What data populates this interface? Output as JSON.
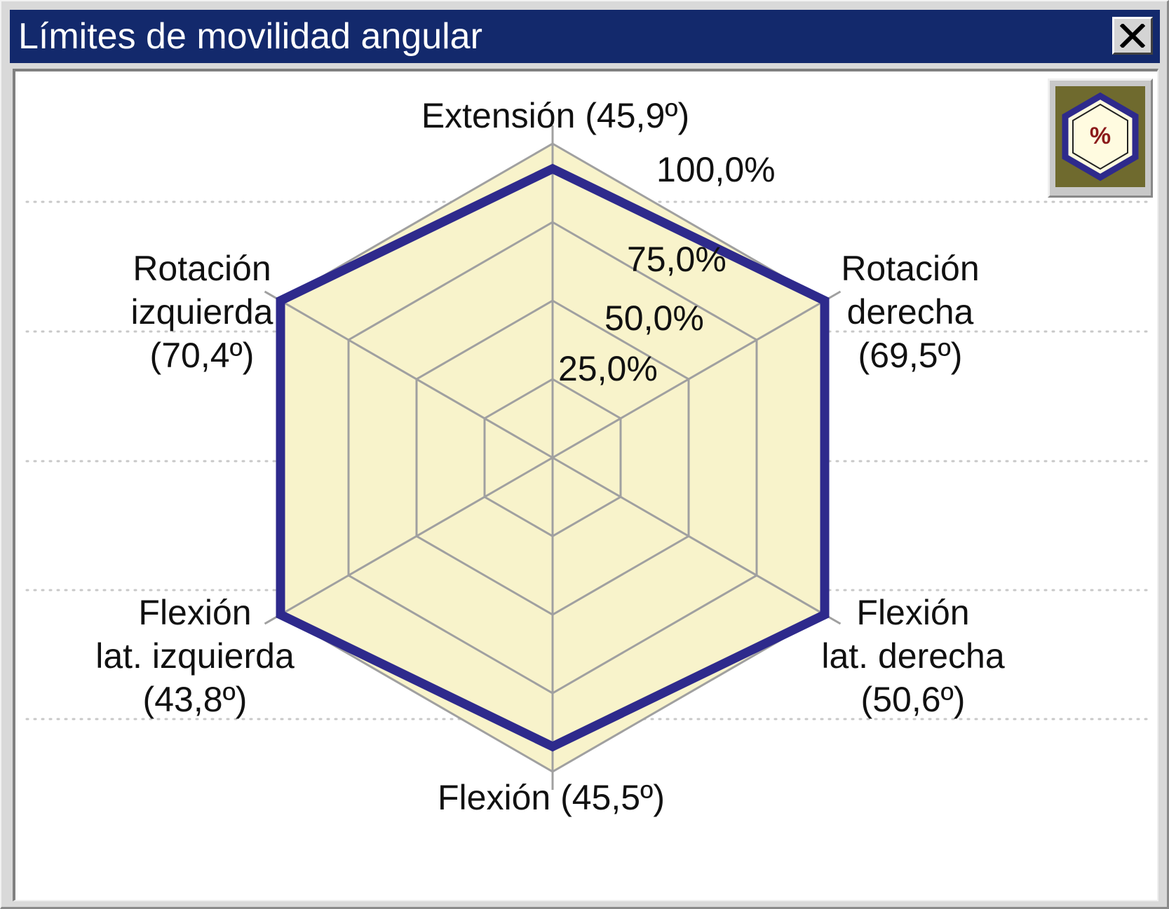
{
  "window": {
    "title": "Límites de movilidad angular",
    "close_icon": "close-icon"
  },
  "toolbar": {
    "mode_icon": "hexagon-percent-icon",
    "mode_glyph": "%"
  },
  "colors": {
    "titlebar": "#13296c",
    "area_fill": "#f8f3cb",
    "grid": "#a0a0a0",
    "series_line": "#2e2a8c",
    "axis_text": "#111111"
  },
  "chart_data": {
    "type": "radar",
    "axes": [
      {
        "label_lines": [
          "Extensión (45,9º)"
        ],
        "value": 92
      },
      {
        "label_lines": [
          "Rotación",
          "derecha",
          "(69,5º)"
        ],
        "value": 100
      },
      {
        "label_lines": [
          "Flexión",
          "lat. derecha",
          "(50,6º)"
        ],
        "value": 100
      },
      {
        "label_lines": [
          "Flexión (45,5º)"
        ],
        "value": 92
      },
      {
        "label_lines": [
          "Flexión",
          "lat. izquierda",
          "(43,8º)"
        ],
        "value": 100
      },
      {
        "label_lines": [
          "Rotación",
          "izquierda",
          "(70,4º)"
        ],
        "value": 100
      }
    ],
    "rings": [
      25,
      50,
      75,
      100
    ],
    "ring_labels": [
      "25,0%",
      "50,0%",
      "75,0%",
      "100,0%"
    ],
    "range": [
      0,
      100
    ],
    "unit": "%",
    "grid": true
  }
}
